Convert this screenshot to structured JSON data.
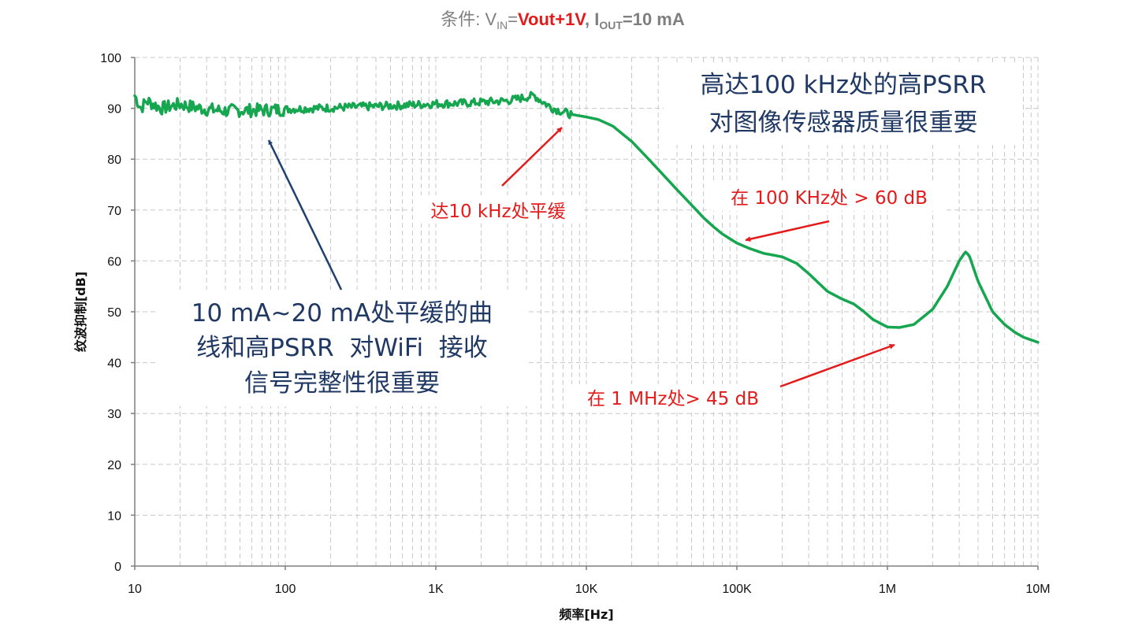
{
  "colors": {
    "curve": "#16a650",
    "blue_text": "#1f3864",
    "red_text": "#e31b1b",
    "blue_arrow": "#1f3f6e",
    "red_arrow": "#e31b1b",
    "grid": "#c8c8c8",
    "title_gray": "#7f7f7f"
  },
  "title": {
    "prefix": "条件: V",
    "vin_sub": "IN",
    "eq1": "=",
    "vin_value": "Vout+1V",
    "comma": ", I",
    "iout_sub": "OUT",
    "eq2_value": "=10 mA"
  },
  "chart_data": {
    "type": "line",
    "xscale": "log",
    "xlim": [
      10,
      10000000
    ],
    "ylim": [
      0,
      100
    ],
    "xlabel": "频率[Hz]",
    "ylabel": "纹波抑制[dB]",
    "grid": true,
    "x_tick_labels": [
      "10",
      "100",
      "1K",
      "10K",
      "100K",
      "1M",
      "10M"
    ],
    "y_tick_labels": [
      "0",
      "10",
      "20",
      "30",
      "40",
      "50",
      "60",
      "70",
      "80",
      "90",
      "100"
    ],
    "series": [
      {
        "x": [
          10,
          11,
          12,
          15,
          20,
          25,
          30,
          40,
          50,
          60,
          80,
          100,
          150,
          200,
          300,
          400,
          500,
          700,
          1000,
          1500,
          2000,
          3000,
          4000,
          4500,
          5000,
          6000,
          7000,
          8000,
          10000,
          12000,
          15000,
          20000,
          25000,
          30000,
          40000,
          50000,
          60000,
          70000,
          80000,
          100000,
          120000,
          150000,
          200000,
          250000,
          300000,
          400000,
          500000,
          600000,
          700000,
          800000,
          1000000,
          1200000,
          1500000,
          2000000,
          2500000,
          3000000,
          3300000,
          3500000,
          4000000,
          5000000,
          6000000,
          7000000,
          8000000,
          10000000
        ],
        "y": [
          92.5,
          90.0,
          91.5,
          90.0,
          90.8,
          90.2,
          89.8,
          89.5,
          89.6,
          89.6,
          89.7,
          89.8,
          90.0,
          90.1,
          90.3,
          90.4,
          90.5,
          90.7,
          90.9,
          91.0,
          91.2,
          91.5,
          92.2,
          92.5,
          91.5,
          90.0,
          89.3,
          88.8,
          88.3,
          87.8,
          86.5,
          83.5,
          80.5,
          78.0,
          74.0,
          71.0,
          68.5,
          66.7,
          65.3,
          63.5,
          62.5,
          61.5,
          60.8,
          59.5,
          57.5,
          54.0,
          52.5,
          51.5,
          50.0,
          48.5,
          47.0,
          46.9,
          47.5,
          50.5,
          55.0,
          60.0,
          61.8,
          61.0,
          56.0,
          50.0,
          47.5,
          46.0,
          45.0,
          44.0
        ]
      }
    ],
    "annotations": [
      {
        "lines": [
          "10 mA~20 mA处平缓的曲",
          "线和高PSRR  对WiFi  接收",
          "信号完整性很重要"
        ]
      },
      {
        "lines": [
          "高达100 kHz处的高PSRR",
          "对图像传感器质量很重要"
        ]
      },
      {
        "lines": [
          "达10 kHz处平缓"
        ]
      },
      {
        "lines": [
          "在 100 KHz处 > 60 dB"
        ]
      },
      {
        "lines": [
          "在 1 MHz处> 45 dB"
        ]
      }
    ]
  }
}
